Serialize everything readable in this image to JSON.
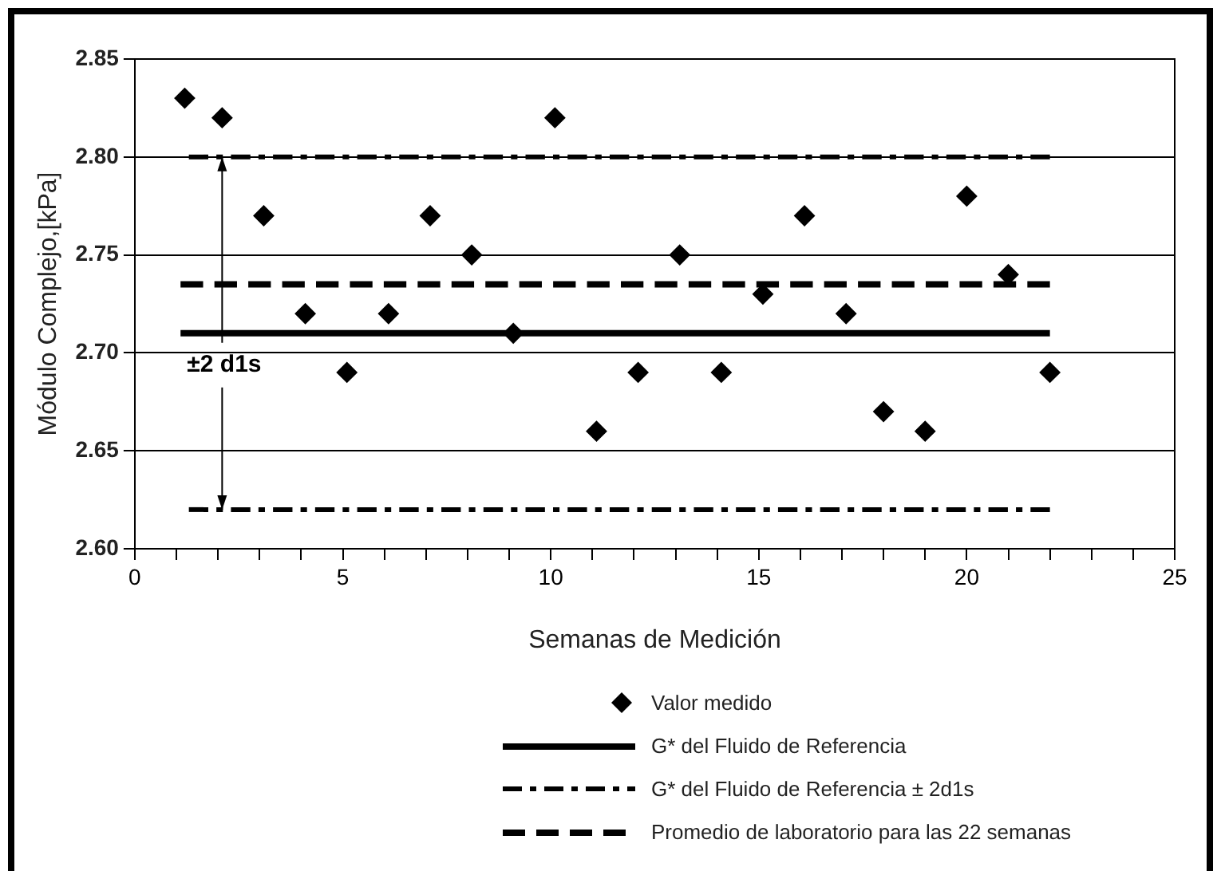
{
  "chart_data": {
    "type": "scatter",
    "xlabel": "Semanas de Medición",
    "ylabel": "Módulo Complejo,[kPa]",
    "xlim": [
      0,
      25
    ],
    "xticks": [
      0,
      {
        "value": 1,
        "label": null
      },
      {
        "value": 2,
        "label": null
      },
      {
        "value": 3,
        "label": null
      },
      {
        "value": 4,
        "label": null
      },
      5,
      {
        "value": 6,
        "label": null
      },
      {
        "value": 7,
        "label": null
      },
      {
        "value": 8,
        "label": null
      },
      {
        "value": 9,
        "label": null
      },
      10,
      {
        "value": 11,
        "label": null
      },
      {
        "value": 12,
        "label": null
      },
      {
        "value": 13,
        "label": null
      },
      {
        "value": 14,
        "label": null
      },
      15,
      {
        "value": 16,
        "label": null
      },
      {
        "value": 17,
        "label": null
      },
      {
        "value": 18,
        "label": null
      },
      {
        "value": 19,
        "label": null
      },
      20,
      {
        "value": 21,
        "label": null
      },
      {
        "value": 22,
        "label": null
      },
      {
        "value": 23,
        "label": null
      },
      {
        "value": 24,
        "label": null
      },
      25
    ],
    "ylim": [
      2.6,
      2.85
    ],
    "yticks": [
      {
        "value": 2.6,
        "label": "2.60"
      },
      {
        "value": 2.65,
        "label": "2.65"
      },
      {
        "value": 2.7,
        "label": "2.70"
      },
      {
        "value": 2.75,
        "label": "2.75"
      },
      {
        "value": 2.8,
        "label": "2.80"
      },
      {
        "value": 2.85,
        "label": "2.85"
      }
    ],
    "grid": "y",
    "legend": "bottom",
    "series": [
      {
        "name": "Valor medido",
        "marker": "diamond",
        "color": "#000000",
        "x": [
          1.2,
          2.1,
          3.1,
          4.1,
          5.1,
          6.1,
          7.1,
          8.1,
          9.1,
          10.1,
          11.1,
          12.1,
          13.1,
          14.1,
          15.1,
          16.1,
          17.1,
          18.0,
          19.0,
          20.0,
          21.0,
          22.0
        ],
        "values": [
          2.83,
          2.82,
          2.77,
          2.72,
          2.69,
          2.72,
          2.77,
          2.75,
          2.71,
          2.82,
          2.66,
          2.69,
          2.75,
          2.69,
          2.73,
          2.77,
          2.72,
          2.67,
          2.66,
          2.78,
          2.74,
          2.69
        ]
      },
      {
        "name": "G* del Fluido de Referencia",
        "type": "line",
        "line_style": "solid",
        "color": "#000000",
        "x": [
          1.1,
          22
        ],
        "values": [
          2.71,
          2.71
        ]
      },
      {
        "name": "G* del Fluido de Referencia ± 2d1s",
        "type": "line",
        "line_style": "dashdot",
        "color": "#000000",
        "x": [
          1.3,
          22
        ],
        "values": [
          2.8,
          2.8
        ]
      },
      {
        "type": "line",
        "line_style": "dashdot",
        "color": "#000000",
        "x": [
          1.3,
          22
        ],
        "values": [
          2.62,
          2.62
        ]
      },
      {
        "name": "Promedio de laboratorio para las 22 semanas",
        "type": "line",
        "line_style": "dashed",
        "color": "#000000",
        "x": [
          1.1,
          22
        ],
        "values": [
          2.735,
          2.735
        ]
      }
    ],
    "annotations": [
      {
        "text": "±2 d1s",
        "x": 2.1,
        "y": 2.8
      }
    ]
  }
}
